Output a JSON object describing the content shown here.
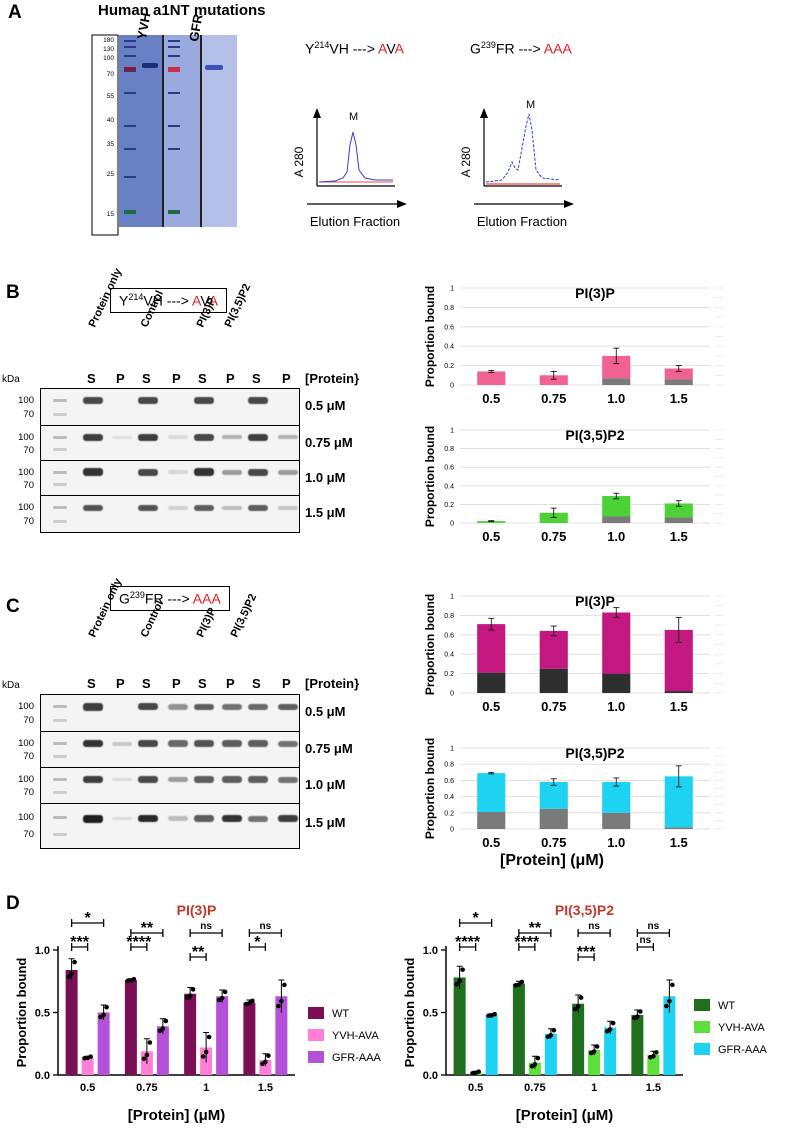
{
  "panelA": {
    "letter": "A",
    "title": "Human a1NT mutations",
    "ladder": [
      "180",
      "130",
      "100",
      "70",
      "55",
      "40",
      "35",
      "25",
      "15"
    ],
    "lanes": [
      "YVH",
      "GFR"
    ],
    "chrom": [
      {
        "pre": "Y",
        "sup": "214",
        "mid": "VH ---> ",
        "muts": [
          "A",
          "V",
          "A"
        ],
        "peak": "M",
        "ylabel": "A 280",
        "xlabel": "Elution Fraction"
      },
      {
        "pre": "G",
        "sup": "239",
        "mid": "FR ---> ",
        "muts": [
          "A",
          "A",
          "A"
        ],
        "peak": "M",
        "ylabel": "A 280",
        "xlabel": "Elution Fraction"
      }
    ]
  },
  "panelB": {
    "letter": "B",
    "label": {
      "pre": "Y",
      "sup": "214",
      "mid": "VH ---> ",
      "muts": [
        "A",
        "V",
        "A"
      ]
    },
    "colHeaders": [
      "Protein only",
      "Control",
      "PI(3)P",
      "PI(3,5)P2"
    ],
    "sp": [
      "S",
      "P",
      "S",
      "P",
      "S",
      "P",
      "S",
      "P"
    ],
    "proteinHeader": "[Protein}",
    "kda": "kDa",
    "markers": [
      "100",
      "70"
    ],
    "concs": [
      "0.5 μM",
      "0.75 μM",
      "1.0 μM",
      "1.5 μM"
    ]
  },
  "panelC": {
    "letter": "C",
    "label": {
      "pre": "G",
      "sup": "239",
      "mid": "FR ---> ",
      "muts": [
        "A",
        "A",
        "A"
      ]
    },
    "colHeaders": [
      "Protein only",
      "Control",
      "PI(3)P",
      "PI(3,5)P2"
    ],
    "sp": [
      "S",
      "P",
      "S",
      "P",
      "S",
      "P",
      "S",
      "P"
    ],
    "proteinHeader": "[Protein}",
    "kda": "kDa",
    "markers": [
      "100",
      "70"
    ],
    "concs": [
      "0.5 μM",
      "0.75 μM",
      "1.0 μM",
      "1.5 μM"
    ],
    "xAxisLabel": "[Protein] (μM)"
  },
  "panelD": {
    "letter": "D"
  },
  "chart_data": [
    {
      "type": "bar",
      "title": "PI(3)P",
      "ylabel": "Proportion bound",
      "ylim": [
        0,
        1
      ],
      "yticks": [
        "0",
        "0.2",
        "0.4",
        "0.6",
        "0.8",
        "1"
      ],
      "categories": [
        "0.5",
        "0.75",
        "1.0",
        "1.5"
      ],
      "stacked": true,
      "colors": [
        "#7a7a7a",
        "#f06292"
      ],
      "series": [
        {
          "values": [
            0.0,
            0.0,
            0.07,
            0.06
          ]
        },
        {
          "values": [
            0.14,
            0.1,
            0.23,
            0.11
          ]
        }
      ],
      "errors": [
        0.01,
        0.04,
        0.08,
        0.03
      ]
    },
    {
      "type": "bar",
      "title": "PI(3,5)P2",
      "ylabel": "Proportion bound",
      "ylim": [
        0,
        1
      ],
      "yticks": [
        "0",
        "0.2",
        "0.4",
        "0.6",
        "0.8",
        "1"
      ],
      "categories": [
        "0.5",
        "0.75",
        "1.0",
        "1.5"
      ],
      "stacked": true,
      "colors": [
        "#7a7a7a",
        "#4cd137"
      ],
      "series": [
        {
          "values": [
            0.0,
            0.0,
            0.07,
            0.06
          ]
        },
        {
          "values": [
            0.02,
            0.11,
            0.22,
            0.15
          ]
        }
      ],
      "errors": [
        0.005,
        0.05,
        0.03,
        0.03
      ]
    },
    {
      "type": "bar",
      "title": "PI(3)P",
      "ylabel": "Proportion bound",
      "ylim": [
        0,
        1
      ],
      "yticks": [
        "0",
        "0.2",
        "0.4",
        "0.6",
        "0.8",
        "1"
      ],
      "categories": [
        "0.5",
        "0.75",
        "1.0",
        "1.5"
      ],
      "stacked": true,
      "colors": [
        "#2e2e2e",
        "#c2187f"
      ],
      "series": [
        {
          "values": [
            0.21,
            0.25,
            0.2,
            0.02
          ]
        },
        {
          "values": [
            0.5,
            0.39,
            0.63,
            0.63
          ]
        }
      ],
      "errors": [
        0.06,
        0.05,
        0.05,
        0.13
      ]
    },
    {
      "type": "bar",
      "title": "PI(3,5)P2",
      "ylabel": "Proportion bound",
      "ylim": [
        0,
        1
      ],
      "yticks": [
        "0",
        "0.2",
        "0.4",
        "0.6",
        "0.8",
        "1"
      ],
      "categories": [
        "0.5",
        "0.75",
        "1.0",
        "1.5"
      ],
      "stacked": true,
      "colors": [
        "#7a7a7a",
        "#1ed3f2"
      ],
      "series": [
        {
          "values": [
            0.21,
            0.25,
            0.2,
            0.02
          ]
        },
        {
          "values": [
            0.48,
            0.33,
            0.38,
            0.63
          ]
        }
      ],
      "errors": [
        0.01,
        0.04,
        0.05,
        0.13
      ]
    },
    {
      "type": "bar",
      "title": "PI(3)P",
      "ylabel": "Proportion bound",
      "xlabel": "[Protein] (μM)",
      "ylim": [
        0,
        1
      ],
      "yticks": [
        "0.0",
        "0.5",
        "1.0"
      ],
      "categories": [
        "0.5",
        "0.75",
        "1",
        "1.5"
      ],
      "legend": "right",
      "colors": [
        "#7b0f55",
        "#ff7fd6",
        "#b551d8"
      ],
      "series": [
        {
          "name": "WT",
          "values": [
            0.84,
            0.76,
            0.65,
            0.58
          ]
        },
        {
          "name": "YVH-AVA",
          "values": [
            0.14,
            0.19,
            0.22,
            0.12
          ]
        },
        {
          "name": "GFR-AAA",
          "values": [
            0.5,
            0.39,
            0.63,
            0.63
          ]
        }
      ],
      "errors": [
        [
          0.09,
          0.01,
          0.05,
          0.02
        ],
        [
          0.01,
          0.1,
          0.12,
          0.05
        ],
        [
          0.06,
          0.06,
          0.05,
          0.13
        ]
      ],
      "significance": [
        {
          "cat": 0,
          "pair": [
            0,
            1
          ],
          "label": "***"
        },
        {
          "cat": 0,
          "pair": [
            0,
            2
          ],
          "label": "*"
        },
        {
          "cat": 1,
          "pair": [
            0,
            1
          ],
          "label": "****"
        },
        {
          "cat": 1,
          "pair": [
            0,
            2
          ],
          "label": "**"
        },
        {
          "cat": 2,
          "pair": [
            0,
            1
          ],
          "label": "**"
        },
        {
          "cat": 2,
          "pair": [
            0,
            2
          ],
          "label": "ns"
        },
        {
          "cat": 3,
          "pair": [
            0,
            1
          ],
          "label": "*"
        },
        {
          "cat": 3,
          "pair": [
            0,
            2
          ],
          "label": "ns"
        }
      ]
    },
    {
      "type": "bar",
      "title": "PI(3,5)P2",
      "ylabel": "Proportion bound",
      "xlabel": "[Protein] (μM)",
      "ylim": [
        0,
        1
      ],
      "yticks": [
        "0.0",
        "0.5",
        "1.0"
      ],
      "categories": [
        "0.5",
        "0.75",
        "1",
        "1.5"
      ],
      "legend": "right",
      "colors": [
        "#1f6f1f",
        "#5ee03c",
        "#1ed3f2"
      ],
      "series": [
        {
          "name": "WT",
          "values": [
            0.78,
            0.73,
            0.57,
            0.48
          ]
        },
        {
          "name": "YVH-AVA",
          "values": [
            0.02,
            0.1,
            0.2,
            0.16
          ]
        },
        {
          "name": "GFR-AAA",
          "values": [
            0.48,
            0.33,
            0.38,
            0.63
          ]
        }
      ],
      "errors": [
        [
          0.09,
          0.02,
          0.07,
          0.04
        ],
        [
          0.01,
          0.05,
          0.04,
          0.03
        ],
        [
          0.01,
          0.04,
          0.05,
          0.13
        ]
      ],
      "significance": [
        {
          "cat": 0,
          "pair": [
            0,
            1
          ],
          "label": "****"
        },
        {
          "cat": 0,
          "pair": [
            0,
            2
          ],
          "label": "*"
        },
        {
          "cat": 1,
          "pair": [
            0,
            1
          ],
          "label": "****"
        },
        {
          "cat": 1,
          "pair": [
            0,
            2
          ],
          "label": "**"
        },
        {
          "cat": 2,
          "pair": [
            0,
            1
          ],
          "label": "***"
        },
        {
          "cat": 2,
          "pair": [
            0,
            2
          ],
          "label": "ns"
        },
        {
          "cat": 3,
          "pair": [
            0,
            1
          ],
          "label": "ns"
        },
        {
          "cat": 3,
          "pair": [
            0,
            2
          ],
          "label": "ns"
        }
      ]
    }
  ]
}
